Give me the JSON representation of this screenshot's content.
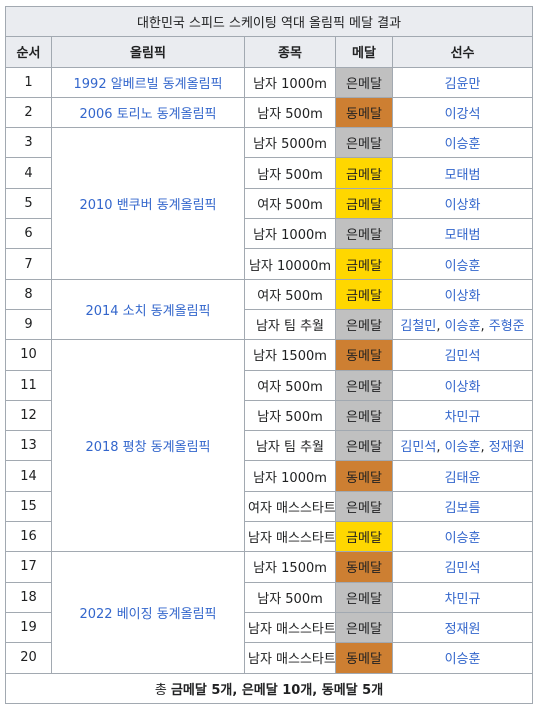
{
  "caption": "대한민국 스피드 스케이팅 역대 올림픽 메달 결과",
  "headers": [
    "순서",
    "올림픽",
    "종목",
    "메달",
    "선수"
  ],
  "rows": [
    {
      "no": "1",
      "olympic": "1992 알베르빌 동계올림픽",
      "olympic_span": 1,
      "event": "남자 1000m",
      "medal": "은메달",
      "medal_type": "silver",
      "athlete": "김윤만"
    },
    {
      "no": "2",
      "olympic": "2006 토리노 동계올림픽",
      "olympic_span": 1,
      "event": "남자 500m",
      "medal": "동메달",
      "medal_type": "bronze",
      "athlete": "이강석"
    },
    {
      "no": "3",
      "olympic": "2010 밴쿠버 동계올림픽",
      "olympic_span": 5,
      "event": "남자 5000m",
      "medal": "은메달",
      "medal_type": "silver",
      "athlete": "이승훈"
    },
    {
      "no": "4",
      "event": "남자 500m",
      "medal": "금메달",
      "medal_type": "gold",
      "athlete": "모태범"
    },
    {
      "no": "5",
      "event": "여자 500m",
      "medal": "금메달",
      "medal_type": "gold",
      "athlete": "이상화"
    },
    {
      "no": "6",
      "event": "남자 1000m",
      "medal": "은메달",
      "medal_type": "silver",
      "athlete": "모태범"
    },
    {
      "no": "7",
      "event": "남자 10000m",
      "medal": "금메달",
      "medal_type": "gold",
      "athlete": "이승훈"
    },
    {
      "no": "8",
      "olympic": "2014 소치 동계올림픽",
      "olympic_span": 2,
      "event": "여자 500m",
      "medal": "금메달",
      "medal_type": "gold",
      "athlete": "이상화"
    },
    {
      "no": "9",
      "event": "남자 팀 추월",
      "medal": "은메달",
      "medal_type": "silver",
      "athlete": "김철민, 이승훈, 주형준"
    },
    {
      "no": "10",
      "olympic": "2018 평창 동계올림픽",
      "olympic_span": 7,
      "event": "남자 1500m",
      "medal": "동메달",
      "medal_type": "bronze",
      "athlete": "김민석"
    },
    {
      "no": "11",
      "event": "여자 500m",
      "medal": "은메달",
      "medal_type": "silver",
      "athlete": "이상화"
    },
    {
      "no": "12",
      "event": "남자 500m",
      "medal": "은메달",
      "medal_type": "silver",
      "athlete": "차민규"
    },
    {
      "no": "13",
      "event": "남자 팀 추월",
      "medal": "은메달",
      "medal_type": "silver",
      "athlete": "김민석, 이승훈, 정재원"
    },
    {
      "no": "14",
      "event": "남자 1000m",
      "medal": "동메달",
      "medal_type": "bronze",
      "athlete": "김태윤"
    },
    {
      "no": "15",
      "event": "여자 매스스타트",
      "medal": "은메달",
      "medal_type": "silver",
      "athlete": "김보름"
    },
    {
      "no": "16",
      "event": "남자 매스스타트",
      "medal": "금메달",
      "medal_type": "gold",
      "athlete": "이승훈"
    },
    {
      "no": "17",
      "olympic": "2022 베이징 동계올림픽",
      "olympic_span": 4,
      "event": "남자 1500m",
      "medal": "동메달",
      "medal_type": "bronze",
      "athlete": "김민석"
    },
    {
      "no": "18",
      "event": "남자 500m",
      "medal": "은메달",
      "medal_type": "silver",
      "athlete": "차민규"
    },
    {
      "no": "19",
      "event": "남자 매스스타트",
      "medal": "은메달",
      "medal_type": "silver",
      "athlete": "정재원"
    },
    {
      "no": "20",
      "event": "남자 매스스타트",
      "medal": "동메달",
      "medal_type": "bronze",
      "athlete": "이승훈"
    }
  ],
  "footer": {
    "prefix": "총 ",
    "text": "금메달 5개, 은메달 10개, 동메달 5개"
  }
}
